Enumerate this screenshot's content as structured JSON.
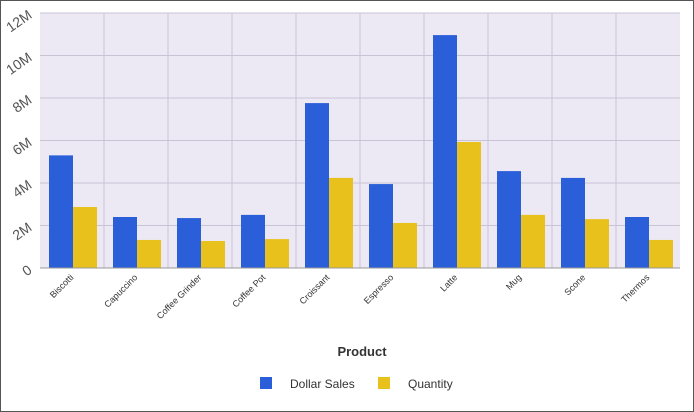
{
  "chart_data": {
    "type": "bar",
    "x_label": "Product",
    "categories": [
      "Biscotti",
      "Capuccino",
      "Coffee Grinder",
      "Coffee Pot",
      "Croissant",
      "Espresso",
      "Latte",
      "Mug",
      "Scone",
      "Thermos"
    ],
    "series": [
      {
        "name": "Dollar Sales",
        "color": "#2b5fd9",
        "values": [
          5300000,
          2400000,
          2350000,
          2500000,
          7760000,
          3950000,
          10960000,
          4560000,
          4240000,
          2400000
        ]
      },
      {
        "name": "Quantity",
        "color": "#e8c11c",
        "values": [
          2870000,
          1320000,
          1270000,
          1360000,
          4240000,
          2120000,
          5930000,
          2500000,
          2300000,
          1320000
        ]
      }
    ],
    "ylim": [
      0,
      12000000
    ],
    "yticks": [
      0,
      {
        "value": 2000000,
        "label": "2M"
      },
      {
        "value": 4000000,
        "label": "4M"
      },
      {
        "value": 6000000,
        "label": "6M"
      },
      {
        "value": 8000000,
        "label": "8M"
      },
      {
        "value": 10000000,
        "label": "10M"
      },
      {
        "value": 12000000,
        "label": "12M"
      }
    ],
    "grid": true,
    "legend": "bottom"
  }
}
